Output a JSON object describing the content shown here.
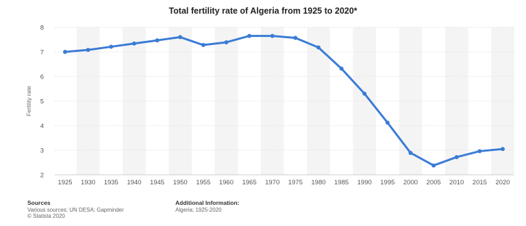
{
  "chart_data": {
    "type": "line",
    "title": "Total fertility rate of Algeria from 1925 to 2020*",
    "xlabel": "",
    "ylabel": "Fertility rate",
    "x": [
      1925,
      1930,
      1935,
      1940,
      1945,
      1950,
      1955,
      1960,
      1965,
      1970,
      1975,
      1980,
      1985,
      1990,
      1995,
      2000,
      2005,
      2010,
      2015,
      2020
    ],
    "series": [
      {
        "values": [
          7.0,
          7.08,
          7.21,
          7.34,
          7.47,
          7.6,
          7.28,
          7.39,
          7.65,
          7.65,
          7.57,
          7.18,
          6.32,
          5.3,
          4.12,
          2.89,
          2.38,
          2.72,
          2.96,
          3.05
        ]
      }
    ],
    "ylim": [
      2,
      8
    ],
    "yticks": [
      2,
      3,
      4,
      5,
      6,
      7,
      8
    ],
    "grid": true,
    "line_color": "#3a7bd5"
  },
  "footer": {
    "sources_heading": "Sources",
    "sources_line1": "Various sources; UN DESA; Gapminder",
    "sources_line2": "© Statista 2020",
    "additional_heading": "Additional Information:",
    "additional_line1": "Algeria; 1925-2020"
  }
}
